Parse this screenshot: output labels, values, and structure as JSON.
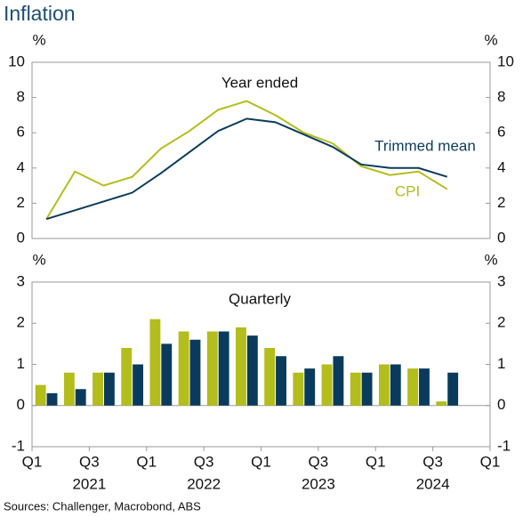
{
  "title": "Inflation",
  "source": "Sources: Challenger, Macrobond, ABS",
  "chart_data": [
    {
      "type": "line",
      "y_label": "%",
      "y2_label": "%",
      "annotations": [
        "Year ended",
        "Trimmed mean",
        "CPI"
      ],
      "categories": [
        null,
        null,
        null,
        null,
        null,
        null,
        null,
        null,
        null,
        null,
        null,
        null,
        null,
        null,
        null
      ],
      "xlim": [
        0,
        16
      ],
      "ylim": [
        0,
        10
      ],
      "yticks": [
        0,
        2,
        4,
        6,
        8,
        10
      ],
      "y2lim": [
        0,
        10
      ],
      "y2ticks": [
        0,
        2,
        4,
        6,
        8,
        10
      ],
      "series": [
        {
          "name": "CPI",
          "color": "#b3bd1c",
          "values": [
            1.1,
            3.8,
            3.0,
            3.5,
            5.1,
            6.1,
            7.3,
            7.8,
            7.0,
            6.0,
            5.4,
            4.1,
            3.6,
            3.8,
            2.8
          ]
        },
        {
          "name": "Trimmed mean",
          "color": "#0b3b5c",
          "values": [
            1.1,
            1.6,
            2.1,
            2.6,
            3.7,
            4.9,
            6.1,
            6.8,
            6.6,
            5.9,
            5.2,
            4.2,
            4.0,
            4.0,
            3.5
          ]
        }
      ]
    },
    {
      "type": "bar",
      "y_label": "%",
      "y2_label": "%",
      "annotations": [
        "Quarterly"
      ],
      "categories": [
        null,
        null,
        null,
        null,
        null,
        null,
        null,
        null,
        null,
        null,
        null,
        null,
        null,
        null,
        null
      ],
      "xlim": [
        0,
        16
      ],
      "xticks": [
        {
          "value": 0,
          "label": "Q1"
        },
        {
          "value": 2,
          "label": "Q3"
        },
        {
          "value": 4,
          "label": "Q1"
        },
        {
          "value": 6,
          "label": "Q3"
        },
        {
          "value": 8,
          "label": "Q1"
        },
        {
          "value": 10,
          "label": "Q3"
        },
        {
          "value": 12,
          "label": "Q1"
        },
        {
          "value": 14,
          "label": "Q3"
        },
        {
          "value": 16,
          "label": "Q1"
        }
      ],
      "years": [
        "2021",
        "2022",
        "2023",
        "2024"
      ],
      "ylim": [
        -1,
        3
      ],
      "yticks": [
        -1,
        0,
        1,
        2,
        3
      ],
      "y2lim": [
        -1,
        3
      ],
      "y2ticks": [
        -1,
        0,
        1,
        2,
        3
      ],
      "series": [
        {
          "name": "CPI",
          "color": "#b3bd1c",
          "values": [
            0.5,
            0.8,
            0.8,
            1.4,
            2.1,
            1.8,
            1.8,
            1.9,
            1.4,
            0.8,
            1.0,
            0.8,
            1.0,
            0.9,
            0.1
          ]
        },
        {
          "name": "Trimmed mean",
          "color": "#0b3b5c",
          "values": [
            0.3,
            0.4,
            0.8,
            1.0,
            1.5,
            1.6,
            1.8,
            1.7,
            1.2,
            0.9,
            1.2,
            0.8,
            1.0,
            0.9,
            0.8
          ]
        }
      ]
    }
  ]
}
